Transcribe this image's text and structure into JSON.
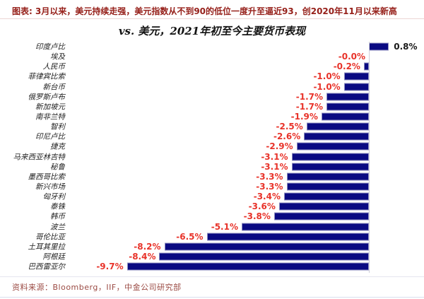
{
  "header": {
    "caption": "图表: 3月以来，美元持续走强，美元指数从不到90的低位一度升至逼近93，创2020年11月以来新高"
  },
  "chart_data": {
    "type": "bar",
    "orientation": "horizontal",
    "title": "vs. 美元，2021年初至今主要货币表现",
    "categories": [
      "印度卢比",
      "埃及",
      "人民币",
      "菲律宾比索",
      "新台币",
      "俄罗斯卢布",
      "新加坡元",
      "南非兰特",
      "智利",
      "印尼卢比",
      "捷克",
      "马来西亚林吉特",
      "秘鲁",
      "墨西哥比索",
      "新兴市场",
      "匈牙利",
      "泰铢",
      "韩币",
      "波兰",
      "哥伦比亚",
      "土耳其里拉",
      "阿根廷",
      "巴西雷亚尔"
    ],
    "values": [
      0.8,
      0.0,
      -0.2,
      -1.0,
      -1.0,
      -1.7,
      -1.7,
      -1.9,
      -2.5,
      -2.6,
      -2.9,
      -3.1,
      -3.1,
      -3.3,
      -3.3,
      -3.4,
      -3.6,
      -3.8,
      -5.1,
      -6.5,
      -8.2,
      -8.4,
      -9.7
    ],
    "value_labels": [
      "0.8%",
      "-0.0%",
      "-0.2%",
      "-1.0%",
      "-1.0%",
      "-1.7%",
      "-1.7%",
      "-1.9%",
      "-2.5%",
      "-2.6%",
      "-2.9%",
      "-3.1%",
      "-3.1%",
      "-3.3%",
      "-3.3%",
      "-3.4%",
      "-3.6%",
      "-3.8%",
      "-5.1%",
      "-6.5%",
      "-8.2%",
      "-8.4%",
      "-9.7%"
    ],
    "xlim": [
      -12.2,
      2.2
    ],
    "grid": false,
    "legend": "none",
    "bar_color": "#0a0a82",
    "negative_label_color": "#e8332a",
    "positive_label_color": "#1a1a1a"
  },
  "footer": {
    "source": "资料来源：Bloomberg，IIF，中金公司研究部"
  }
}
